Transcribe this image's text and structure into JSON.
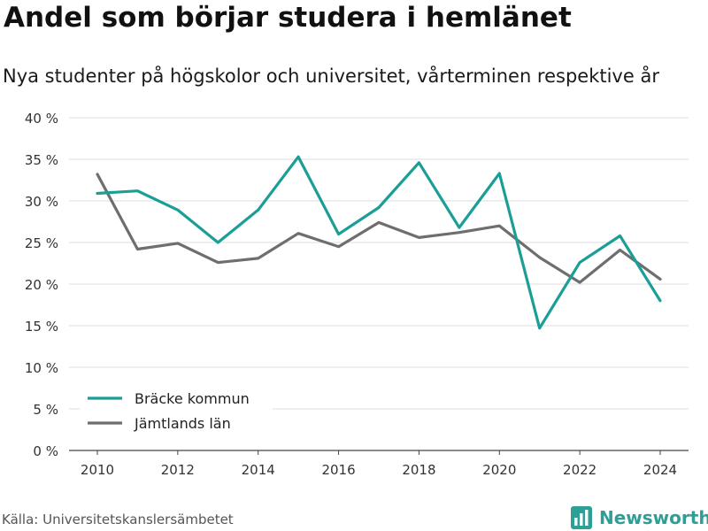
{
  "header": {
    "title": "Andel som börjar studera i hemlänet",
    "subtitle": "Nya studenter på högskolor och universitet, vårterminen respektive år"
  },
  "footer": {
    "source": "Källa: Universitetskanslersämbetet",
    "logo_text": "Newsworthy",
    "logo_color": "#2e9f96"
  },
  "chart_data": {
    "type": "line",
    "x": [
      2010,
      2011,
      2012,
      2013,
      2014,
      2015,
      2016,
      2017,
      2018,
      2019,
      2020,
      2021,
      2022,
      2023,
      2024
    ],
    "x_ticks": [
      2010,
      2012,
      2014,
      2016,
      2018,
      2020,
      2022,
      2024
    ],
    "y_ticks": [
      0,
      5,
      10,
      15,
      20,
      25,
      30,
      35,
      40
    ],
    "y_tick_suffix": " %",
    "ylim": [
      0,
      40
    ],
    "grid": true,
    "legend_position": "bottom-left",
    "series": [
      {
        "name": "Bräcke kommun",
        "color": "#1a9e96",
        "values": [
          30.9,
          31.2,
          28.9,
          25.0,
          28.9,
          35.3,
          26.0,
          29.2,
          34.6,
          26.8,
          33.3,
          14.7,
          22.6,
          25.8,
          18.0
        ]
      },
      {
        "name": "Jämtlands län",
        "color": "#6e6e6e",
        "values": [
          33.2,
          24.2,
          24.9,
          22.6,
          23.1,
          26.1,
          24.5,
          27.4,
          25.6,
          26.2,
          27.0,
          23.2,
          20.2,
          24.1,
          20.6
        ]
      }
    ]
  }
}
